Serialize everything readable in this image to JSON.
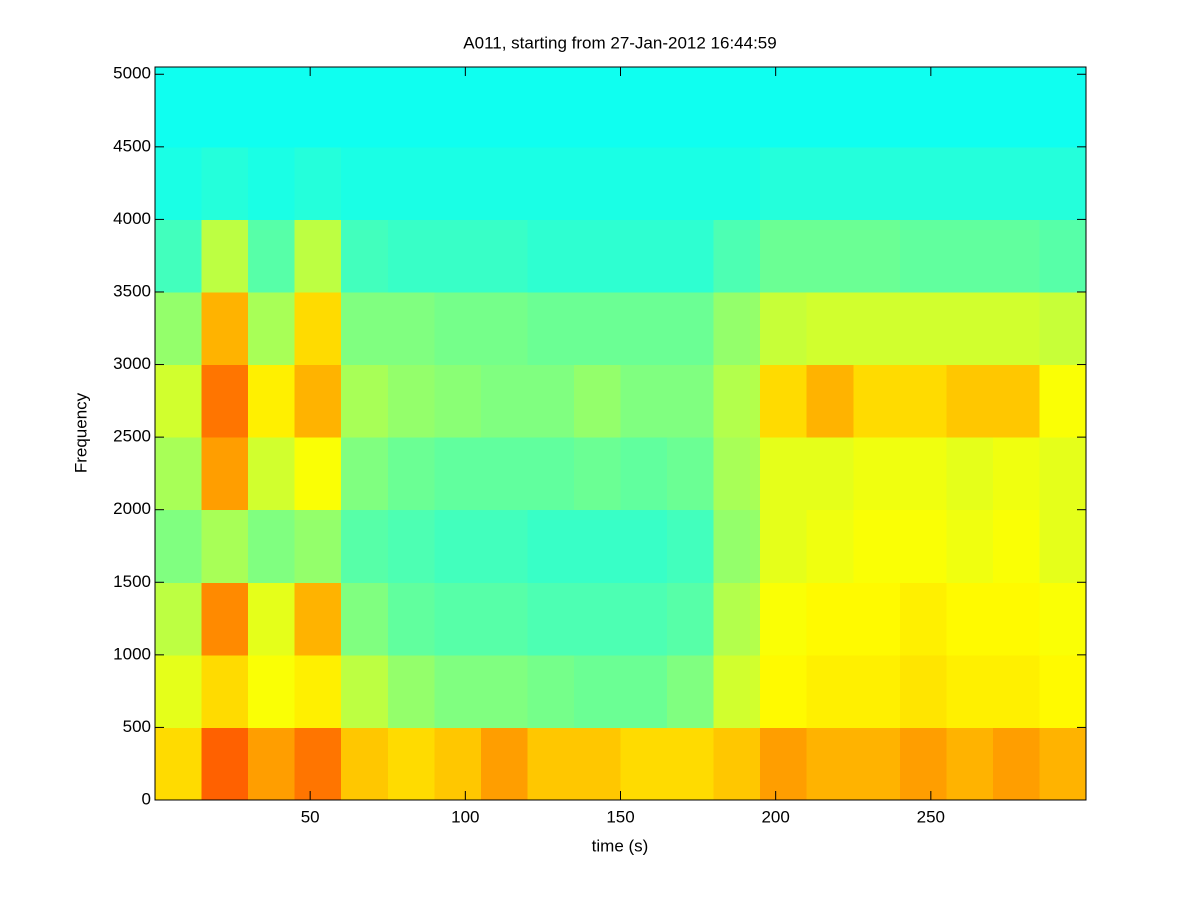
{
  "chart_data": {
    "type": "heatmap",
    "title": "A011, starting from 27-Jan-2012 16:44:59",
    "x_label": "time (s)",
    "y_label": "Frequency",
    "xlim": [
      0,
      300
    ],
    "ylim": [
      0,
      5050
    ],
    "xticks": [
      50,
      100,
      150,
      200,
      250
    ],
    "yticks": [
      0,
      500,
      1000,
      1500,
      2000,
      2500,
      3000,
      3500,
      4000,
      4500,
      5000
    ],
    "colormap": "jet",
    "clim": [
      0,
      1
    ],
    "xbins": [
      0,
      15,
      30,
      45,
      60,
      75,
      90,
      105,
      120,
      135,
      150,
      165,
      180,
      195,
      210,
      225,
      240,
      255,
      270,
      285,
      300
    ],
    "ybins": [
      0,
      500,
      1000,
      1500,
      2000,
      2500,
      3000,
      3500,
      4000,
      4500,
      5050
    ],
    "z": [
      [
        0.66,
        0.78,
        0.72,
        0.76,
        0.68,
        0.66,
        0.68,
        0.72,
        0.68,
        0.68,
        0.66,
        0.66,
        0.68,
        0.72,
        0.7,
        0.7,
        0.72,
        0.7,
        0.72,
        0.7
      ],
      [
        0.6,
        0.66,
        0.62,
        0.64,
        0.56,
        0.52,
        0.5,
        0.5,
        0.49,
        0.48,
        0.48,
        0.5,
        0.58,
        0.63,
        0.64,
        0.64,
        0.65,
        0.64,
        0.64,
        0.63
      ],
      [
        0.56,
        0.74,
        0.6,
        0.7,
        0.5,
        0.47,
        0.46,
        0.46,
        0.45,
        0.45,
        0.45,
        0.46,
        0.55,
        0.62,
        0.63,
        0.63,
        0.64,
        0.63,
        0.63,
        0.62
      ],
      [
        0.5,
        0.54,
        0.5,
        0.52,
        0.46,
        0.45,
        0.44,
        0.44,
        0.43,
        0.43,
        0.43,
        0.44,
        0.52,
        0.6,
        0.61,
        0.62,
        0.62,
        0.61,
        0.62,
        0.6
      ],
      [
        0.54,
        0.72,
        0.58,
        0.62,
        0.5,
        0.48,
        0.47,
        0.47,
        0.47,
        0.48,
        0.47,
        0.48,
        0.54,
        0.6,
        0.6,
        0.61,
        0.61,
        0.6,
        0.61,
        0.6
      ],
      [
        0.58,
        0.76,
        0.64,
        0.7,
        0.54,
        0.52,
        0.51,
        0.5,
        0.5,
        0.52,
        0.5,
        0.5,
        0.55,
        0.66,
        0.7,
        0.66,
        0.66,
        0.68,
        0.68,
        0.62
      ],
      [
        0.52,
        0.7,
        0.54,
        0.66,
        0.5,
        0.5,
        0.49,
        0.49,
        0.48,
        0.48,
        0.48,
        0.48,
        0.52,
        0.57,
        0.58,
        0.58,
        0.58,
        0.58,
        0.58,
        0.57
      ],
      [
        0.44,
        0.56,
        0.46,
        0.56,
        0.44,
        0.43,
        0.43,
        0.43,
        0.42,
        0.42,
        0.42,
        0.42,
        0.45,
        0.48,
        0.48,
        0.48,
        0.47,
        0.47,
        0.47,
        0.46
      ],
      [
        0.4,
        0.41,
        0.4,
        0.41,
        0.4,
        0.4,
        0.4,
        0.4,
        0.4,
        0.4,
        0.4,
        0.4,
        0.4,
        0.41,
        0.41,
        0.41,
        0.41,
        0.41,
        0.41,
        0.41
      ],
      [
        0.39,
        0.39,
        0.39,
        0.39,
        0.39,
        0.39,
        0.39,
        0.39,
        0.39,
        0.39,
        0.39,
        0.39,
        0.39,
        0.39,
        0.39,
        0.39,
        0.39,
        0.39,
        0.39,
        0.39
      ]
    ]
  }
}
